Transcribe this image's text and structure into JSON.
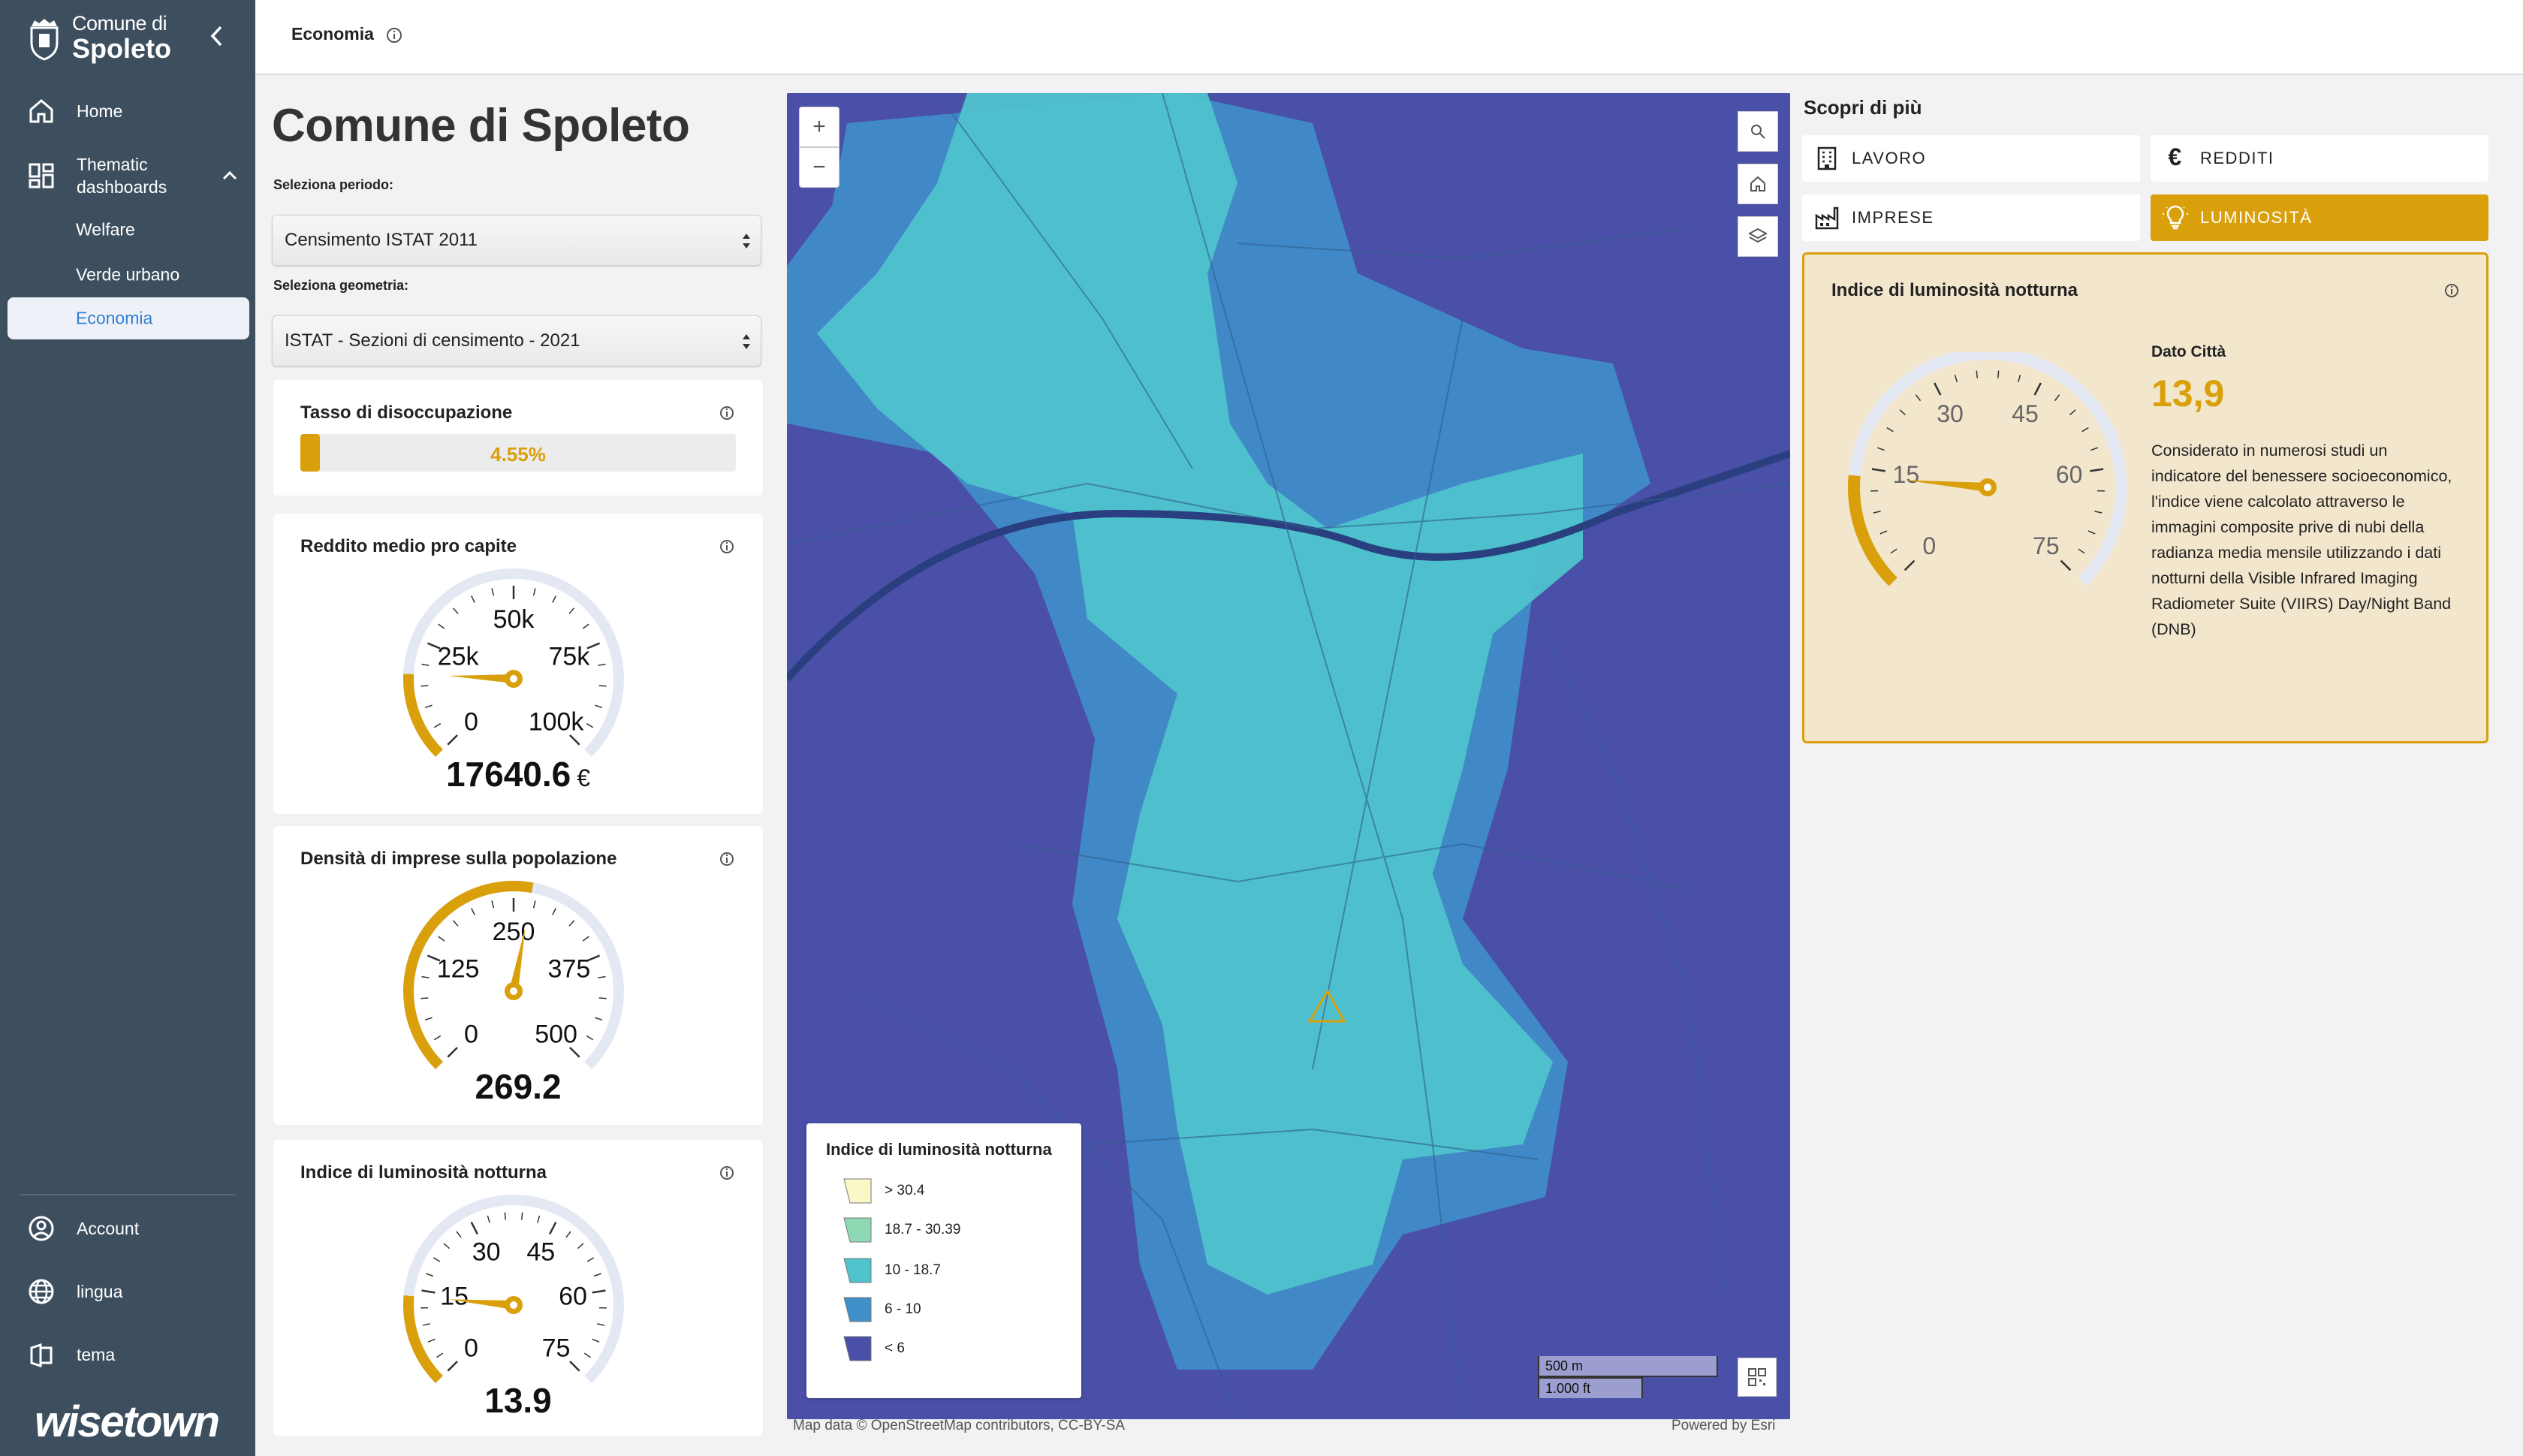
{
  "sidebar": {
    "logo_small": "Comune di",
    "logo_big": "Spoleto",
    "items": [
      {
        "label": "Home",
        "icon": "home-icon"
      },
      {
        "label": "Thematic dashboards",
        "icon": "dashboard-icon"
      },
      {
        "label": "Welfare"
      },
      {
        "label": "Verde urbano"
      },
      {
        "label": "Economia"
      }
    ],
    "bottom": [
      {
        "label": "Account",
        "icon": "account-icon"
      },
      {
        "label": "lingua",
        "icon": "globe-icon"
      },
      {
        "label": "tema",
        "icon": "theme-icon"
      }
    ],
    "brand": "wisetown"
  },
  "topbar": {
    "breadcrumb": "Economia"
  },
  "main": {
    "title": "Comune di Spoleto",
    "period_label": "Seleziona periodo:",
    "period_value": "Censimento ISTAT 2011",
    "geometry_label": "Seleziona geometria:",
    "geometry_value": "ISTAT - Sezioni di censimento - 2021"
  },
  "cards": {
    "unemployment": {
      "title": "Tasso di disoccupazione",
      "value": "4.55%",
      "fraction": 0.0455
    },
    "income": {
      "title": "Reddito medio pro capite",
      "value": "17640.6",
      "unit": "€",
      "ticks": [
        "0",
        "25k",
        "50k",
        "75k",
        "100k"
      ],
      "max": 100000,
      "current": 17640.6
    },
    "business": {
      "title": "Densità di imprese sulla popolazione",
      "value": "269.2",
      "ticks": [
        "0",
        "125",
        "250",
        "375",
        "500"
      ],
      "max": 500,
      "current": 269.2
    },
    "luminosity": {
      "title": "Indice di luminosità notturna",
      "value": "13.9",
      "ticks": [
        "0",
        "15",
        "30",
        "45",
        "60",
        "75"
      ],
      "max": 75,
      "current": 13.9
    }
  },
  "map": {
    "zoom_in": "+",
    "zoom_out": "−",
    "legend_title": "Indice di luminosità notturna",
    "legend": [
      {
        "label": "> 30.4",
        "color": "#fbf8c8"
      },
      {
        "label": "18.7 - 30.39",
        "color": "#8ed8b4"
      },
      {
        "label": "10 - 18.7",
        "color": "#4fc2cc"
      },
      {
        "label": "6 - 10",
        "color": "#3f8fc9"
      },
      {
        "label": "< 6",
        "color": "#4a4fa8"
      }
    ],
    "scale_m": "500 m",
    "scale_ft": "1.000 ft",
    "attribution": "Map data © OpenStreetMap contributors, CC-BY-SA",
    "powered": "Powered by Esri"
  },
  "right": {
    "discover_title": "Scopri di più",
    "tabs": [
      {
        "label": "LAVORO",
        "icon": "building-icon"
      },
      {
        "label": "REDDITI",
        "icon": "euro-icon"
      },
      {
        "label": "IMPRESE",
        "icon": "factory-icon"
      },
      {
        "label": "LUMINOSITÀ",
        "icon": "lightbulb-icon"
      }
    ],
    "panel": {
      "title": "Indice di luminosità notturna",
      "city_label": "Dato Città",
      "city_value": "13,9",
      "description": "Considerato in numerosi studi un indicatore del benessere socioeconomico, l'indice viene calcolato attraverso le immagini composite prive di nubi della radianza media mensile utilizzando i dati notturni della Visible Infrared Imaging Radiometer Suite (VIIRS) Day/Night Band (DNB)",
      "ticks": [
        "0",
        "15",
        "30",
        "45",
        "60",
        "75"
      ],
      "max": 75,
      "current": 13.9
    }
  },
  "colors": {
    "accent": "#d9a00c",
    "sidebar": "#3d4f5f",
    "gauge_track": "#e4e8f3"
  }
}
